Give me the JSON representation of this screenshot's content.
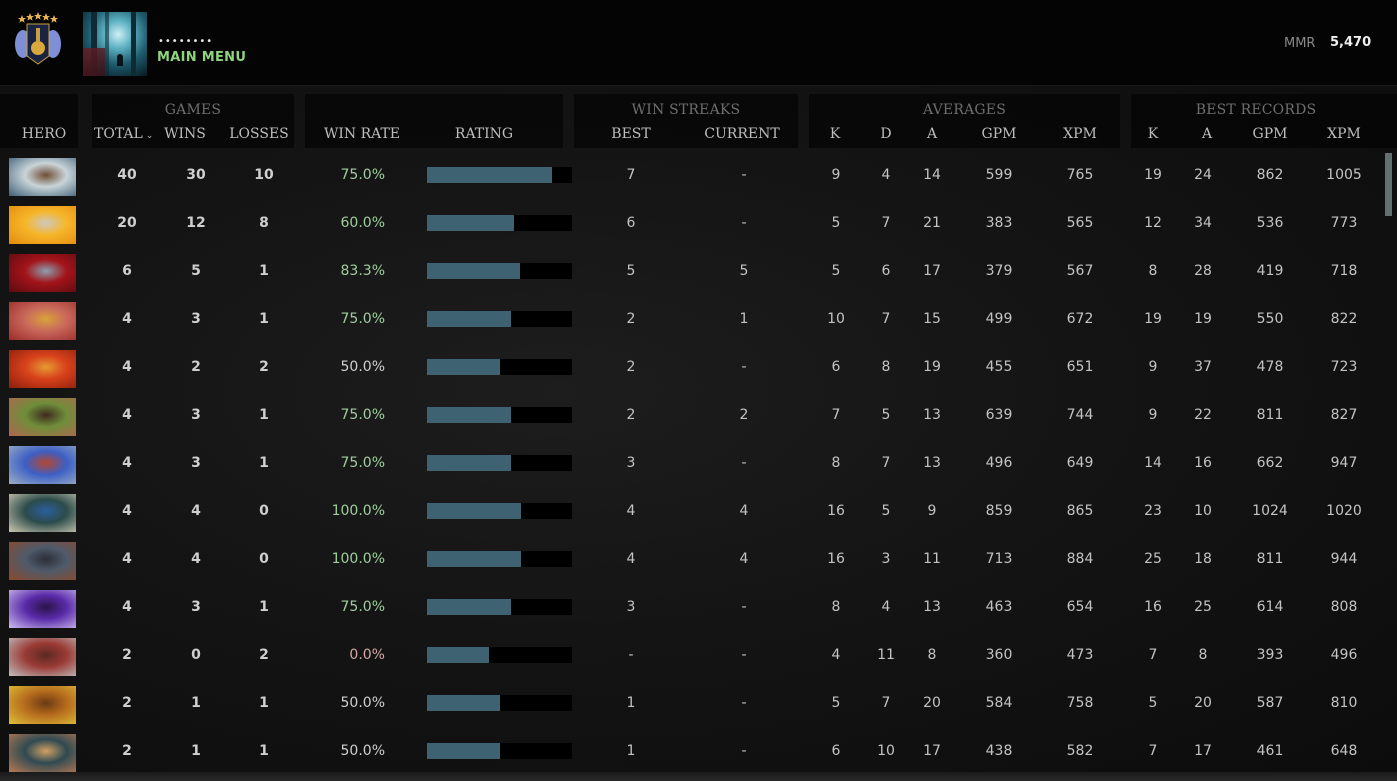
{
  "topbar": {
    "username": "••••••••",
    "main_menu_label": "MAIN MENU",
    "mmr_label": "MMR",
    "mmr_value": "5,470",
    "rank_medal_icon": "immortal-rank-medal-icon",
    "avatar_icon": "player-avatar"
  },
  "header": {
    "groups": {
      "games": "GAMES",
      "win_streaks": "WIN STREAKS",
      "averages": "AVERAGES",
      "best_records": "BEST RECORDS"
    },
    "columns": {
      "hero": "HERO",
      "total": "TOTAL",
      "wins": "WINS",
      "losses": "LOSSES",
      "win_rate": "WIN RATE",
      "rating": "RATING",
      "best": "BEST",
      "current": "CURRENT",
      "avg_k": "K",
      "avg_d": "D",
      "avg_a": "A",
      "avg_gpm": "GPM",
      "avg_xpm": "XPM",
      "rec_k": "K",
      "rec_a": "A",
      "rec_gpm": "GPM",
      "rec_xpm": "XPM"
    },
    "sort_indicator": "⌄"
  },
  "colors": {
    "win_rate_positive": "#9fcf9c",
    "win_rate_neutral": "#cfcfcf",
    "win_rate_negative": "#d4a9a5",
    "rating_bar": "#3f6273",
    "main_menu": "#8ed47e",
    "scrollbar": "#607170"
  },
  "rows": [
    {
      "hero": "hero-kunkka",
      "portrait": [
        "#c9d4d8",
        "#3c5d76",
        "#6e4d35"
      ],
      "total": "40",
      "wins": "30",
      "losses": "10",
      "win_rate": "75.0%",
      "rate_tone": "positive",
      "rating_pct": 86,
      "best_streak": "7",
      "current_streak": "-",
      "avg_k": "9",
      "avg_d": "4",
      "avg_a": "14",
      "avg_gpm": "599",
      "avg_xpm": "765",
      "rec_k": "19",
      "rec_a": "24",
      "rec_gpm": "862",
      "rec_xpm": "1005"
    },
    {
      "hero": "hero-dawnbreaker",
      "portrait": [
        "#f6b629",
        "#e48a0e",
        "#cfc8c0"
      ],
      "total": "20",
      "wins": "12",
      "losses": "8",
      "win_rate": "60.0%",
      "rate_tone": "positive",
      "rating_pct": 60,
      "best_streak": "6",
      "current_streak": "-",
      "avg_k": "5",
      "avg_d": "7",
      "avg_a": "21",
      "avg_gpm": "383",
      "avg_xpm": "565",
      "rec_k": "12",
      "rec_a": "34",
      "rec_gpm": "536",
      "rec_xpm": "773"
    },
    {
      "hero": "hero-queen-of-pain",
      "portrait": [
        "#a3141a",
        "#5c0a10",
        "#8aa0b0"
      ],
      "total": "6",
      "wins": "5",
      "losses": "1",
      "win_rate": "83.3%",
      "rate_tone": "positive",
      "rating_pct": 64,
      "best_streak": "5",
      "current_streak": "5",
      "avg_k": "5",
      "avg_d": "6",
      "avg_a": "17",
      "avg_gpm": "379",
      "avg_xpm": "567",
      "rec_k": "8",
      "rec_a": "28",
      "rec_gpm": "419",
      "rec_xpm": "718"
    },
    {
      "hero": "hero-legion-commander",
      "portrait": [
        "#c96a5b",
        "#9b2a2a",
        "#d9a33a"
      ],
      "total": "4",
      "wins": "3",
      "losses": "1",
      "win_rate": "75.0%",
      "rate_tone": "positive",
      "rating_pct": 58,
      "best_streak": "2",
      "current_streak": "1",
      "avg_k": "10",
      "avg_d": "7",
      "avg_a": "15",
      "avg_gpm": "499",
      "avg_xpm": "672",
      "rec_k": "19",
      "rec_a": "19",
      "rec_gpm": "550",
      "rec_xpm": "822"
    },
    {
      "hero": "hero-ember-spirit",
      "portrait": [
        "#d8421b",
        "#8c1e0c",
        "#e59a33"
      ],
      "total": "4",
      "wins": "2",
      "losses": "2",
      "win_rate": "50.0%",
      "rate_tone": "neutral",
      "rating_pct": 50,
      "best_streak": "2",
      "current_streak": "-",
      "avg_k": "6",
      "avg_d": "8",
      "avg_a": "19",
      "avg_gpm": "455",
      "avg_xpm": "651",
      "rec_k": "9",
      "rec_a": "37",
      "rec_gpm": "478",
      "rec_xpm": "723"
    },
    {
      "hero": "hero-monkey-king",
      "portrait": [
        "#6f8e3a",
        "#b0654f",
        "#3e2a1e"
      ],
      "total": "4",
      "wins": "3",
      "losses": "1",
      "win_rate": "75.0%",
      "rate_tone": "positive",
      "rating_pct": 58,
      "best_streak": "2",
      "current_streak": "2",
      "avg_k": "7",
      "avg_d": "5",
      "avg_a": "13",
      "avg_gpm": "639",
      "avg_xpm": "744",
      "rec_k": "9",
      "rec_a": "22",
      "rec_gpm": "811",
      "rec_xpm": "827"
    },
    {
      "hero": "hero-ogre-magi",
      "portrait": [
        "#3d5fc4",
        "#9db0c8",
        "#b5462e"
      ],
      "total": "4",
      "wins": "3",
      "losses": "1",
      "win_rate": "75.0%",
      "rate_tone": "positive",
      "rating_pct": 58,
      "best_streak": "3",
      "current_streak": "-",
      "avg_k": "8",
      "avg_d": "7",
      "avg_a": "13",
      "avg_gpm": "496",
      "avg_xpm": "649",
      "rec_k": "14",
      "rec_a": "16",
      "rec_gpm": "662",
      "rec_xpm": "947"
    },
    {
      "hero": "hero-sven",
      "portrait": [
        "#2c4b4a",
        "#cfcab5",
        "#2b5fa0"
      ],
      "total": "4",
      "wins": "4",
      "losses": "0",
      "win_rate": "100.0%",
      "rate_tone": "positive",
      "rating_pct": 65,
      "best_streak": "4",
      "current_streak": "4",
      "avg_k": "16",
      "avg_d": "5",
      "avg_a": "9",
      "avg_gpm": "859",
      "avg_xpm": "865",
      "rec_k": "23",
      "rec_a": "10",
      "rec_gpm": "1024",
      "rec_xpm": "1020"
    },
    {
      "hero": "hero-ursa",
      "portrait": [
        "#4f5a6a",
        "#8b4a2c",
        "#2b2f38"
      ],
      "total": "4",
      "wins": "4",
      "losses": "0",
      "win_rate": "100.0%",
      "rate_tone": "positive",
      "rating_pct": 65,
      "best_streak": "4",
      "current_streak": "4",
      "avg_k": "16",
      "avg_d": "3",
      "avg_a": "11",
      "avg_gpm": "713",
      "avg_xpm": "884",
      "rec_k": "25",
      "rec_a": "18",
      "rec_gpm": "811",
      "rec_xpm": "944"
    },
    {
      "hero": "hero-void-spirit",
      "portrait": [
        "#5a2aa8",
        "#cdbdf0",
        "#2a1448"
      ],
      "total": "4",
      "wins": "3",
      "losses": "1",
      "win_rate": "75.0%",
      "rate_tone": "positive",
      "rating_pct": 58,
      "best_streak": "3",
      "current_streak": "-",
      "avg_k": "8",
      "avg_d": "4",
      "avg_a": "13",
      "avg_gpm": "463",
      "avg_xpm": "654",
      "rec_k": "16",
      "rec_a": "25",
      "rec_gpm": "614",
      "rec_xpm": "808"
    },
    {
      "hero": "hero-troll-warlord",
      "portrait": [
        "#9a3a34",
        "#c0c0c0",
        "#5a2a22"
      ],
      "total": "2",
      "wins": "0",
      "losses": "2",
      "win_rate": "0.0%",
      "rate_tone": "negative",
      "rating_pct": 43,
      "best_streak": "-",
      "current_streak": "-",
      "avg_k": "4",
      "avg_d": "11",
      "avg_a": "8",
      "avg_gpm": "360",
      "avg_xpm": "473",
      "rec_k": "7",
      "rec_a": "8",
      "rec_gpm": "393",
      "rec_xpm": "496"
    },
    {
      "hero": "hero-bristleback",
      "portrait": [
        "#b56a1c",
        "#e0c03a",
        "#6a3a14"
      ],
      "total": "2",
      "wins": "1",
      "losses": "1",
      "win_rate": "50.0%",
      "rate_tone": "neutral",
      "rating_pct": 50,
      "best_streak": "1",
      "current_streak": "-",
      "avg_k": "5",
      "avg_d": "7",
      "avg_a": "20",
      "avg_gpm": "584",
      "avg_xpm": "758",
      "rec_k": "5",
      "rec_a": "20",
      "rec_gpm": "587",
      "rec_xpm": "810"
    },
    {
      "hero": "hero-brewmaster",
      "portrait": [
        "#2f4a52",
        "#b87a52",
        "#d2a063"
      ],
      "total": "2",
      "wins": "1",
      "losses": "1",
      "win_rate": "50.0%",
      "rate_tone": "neutral",
      "rating_pct": 50,
      "best_streak": "1",
      "current_streak": "-",
      "avg_k": "6",
      "avg_d": "10",
      "avg_a": "17",
      "avg_gpm": "438",
      "avg_xpm": "582",
      "rec_k": "7",
      "rec_a": "17",
      "rec_gpm": "461",
      "rec_xpm": "648"
    }
  ]
}
